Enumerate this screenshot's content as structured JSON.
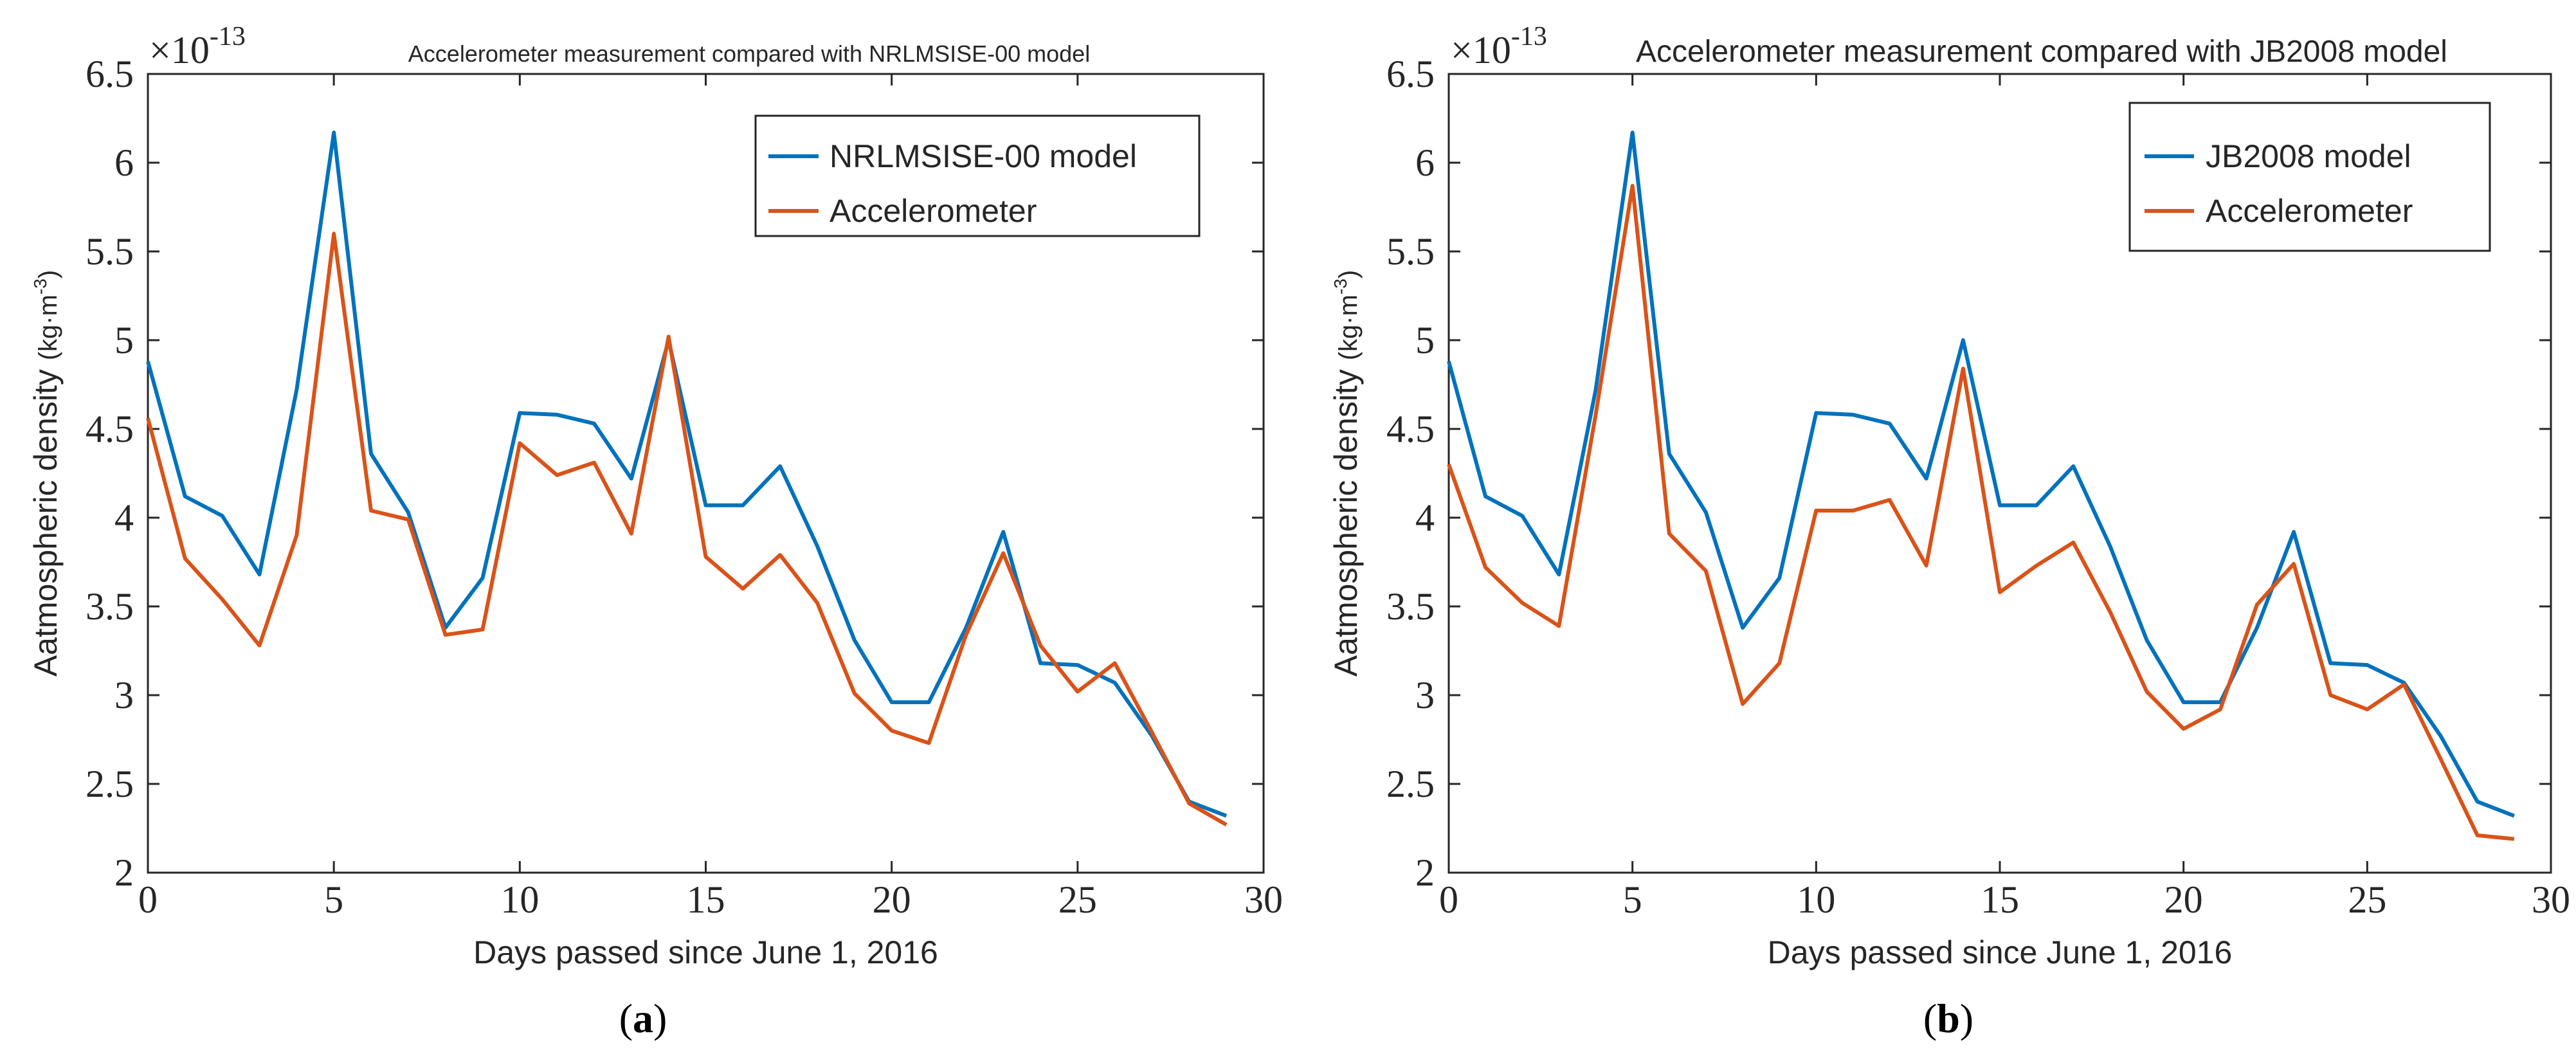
{
  "colors": {
    "model": "#0072BD",
    "accelerometer": "#D95319",
    "axis": "#262626"
  },
  "chart_data": [
    {
      "type": "line",
      "panel": "a",
      "title": "Accelerometer measurement compared with NRLMSISE-00 model",
      "xlabel": "Days passed since June 1, 2016",
      "ylabel_main": "Aatmospheric density ",
      "ylabel_unit": "(kg·m",
      "ylabel_sup": "-3",
      "ylabel_close": ")",
      "exponent_prefix": "×10",
      "exponent_power": "-13",
      "xlim": [
        0,
        30
      ],
      "ylim": [
        2,
        6.5
      ],
      "xticks": [
        "0",
        "5",
        "10",
        "15",
        "20",
        "25",
        "30"
      ],
      "yticks": [
        "2",
        "2.5",
        "3",
        "3.5",
        "4",
        "4.5",
        "5",
        "5.5",
        "6",
        "6.5"
      ],
      "grid": false,
      "legend_position": "top-right",
      "caption_open": "(",
      "caption_letter": "a",
      "caption_close": ")",
      "x": [
        0,
        1,
        2,
        3,
        4,
        5,
        6,
        7,
        8,
        9,
        10,
        11,
        12,
        13,
        14,
        15,
        16,
        17,
        18,
        19,
        20,
        21,
        22,
        23,
        24,
        25,
        26,
        27,
        28,
        29
      ],
      "series": [
        {
          "name": "NRLMSISE-00 model",
          "color": "#0072BD",
          "values": [
            4.88,
            4.12,
            4.01,
            3.68,
            4.72,
            6.17,
            4.36,
            4.03,
            3.38,
            3.66,
            4.59,
            4.58,
            4.53,
            4.22,
            5.0,
            4.07,
            4.07,
            4.29,
            3.84,
            3.31,
            2.96,
            2.96,
            3.38,
            3.92,
            3.18,
            3.17,
            3.07,
            2.77,
            2.4,
            2.32
          ]
        },
        {
          "name": "Accelerometer",
          "color": "#D95319",
          "values": [
            4.56,
            3.77,
            3.54,
            3.28,
            3.9,
            5.6,
            4.04,
            3.99,
            3.34,
            3.37,
            4.42,
            4.24,
            4.31,
            3.91,
            5.02,
            3.78,
            3.6,
            3.79,
            3.52,
            3.01,
            2.8,
            2.73,
            3.34,
            3.8,
            3.28,
            3.02,
            3.18,
            2.79,
            2.39,
            2.27
          ]
        }
      ]
    },
    {
      "type": "line",
      "panel": "b",
      "title": "Accelerometer measurement compared with JB2008 model",
      "xlabel": "Days passed since June 1, 2016",
      "ylabel_main": "Aatmospheric density ",
      "ylabel_unit": "(kg·m",
      "ylabel_sup": "-3",
      "ylabel_close": ")",
      "exponent_prefix": "×10",
      "exponent_power": "-13",
      "xlim": [
        0,
        30
      ],
      "ylim": [
        2,
        6.5
      ],
      "xticks": [
        "0",
        "5",
        "10",
        "15",
        "20",
        "25",
        "30"
      ],
      "yticks": [
        "2",
        "2.5",
        "3",
        "3.5",
        "4",
        "4.5",
        "5",
        "5.5",
        "6",
        "6.5"
      ],
      "grid": false,
      "legend_position": "top-right",
      "caption_open": "(",
      "caption_letter": "b",
      "caption_close": ")",
      "x": [
        0,
        1,
        2,
        3,
        4,
        5,
        6,
        7,
        8,
        9,
        10,
        11,
        12,
        13,
        14,
        15,
        16,
        17,
        18,
        19,
        20,
        21,
        22,
        23,
        24,
        25,
        26,
        27,
        28,
        29
      ],
      "series": [
        {
          "name": "JB2008 model",
          "color": "#0072BD",
          "values": [
            4.88,
            4.12,
            4.01,
            3.68,
            4.72,
            6.17,
            4.36,
            4.03,
            3.38,
            3.66,
            4.59,
            4.58,
            4.53,
            4.22,
            5.0,
            4.07,
            4.07,
            4.29,
            3.84,
            3.31,
            2.96,
            2.96,
            3.38,
            3.92,
            3.18,
            3.17,
            3.07,
            2.77,
            2.4,
            2.32
          ]
        },
        {
          "name": "Accelerometer",
          "color": "#D95319",
          "values": [
            4.3,
            3.72,
            3.52,
            3.39,
            4.58,
            5.87,
            3.91,
            3.7,
            2.95,
            3.18,
            4.04,
            4.04,
            4.1,
            3.73,
            4.84,
            3.58,
            3.73,
            3.86,
            3.47,
            3.02,
            2.81,
            2.92,
            3.51,
            3.74,
            3.0,
            2.92,
            3.06,
            2.64,
            2.21,
            2.19
          ]
        }
      ]
    }
  ]
}
